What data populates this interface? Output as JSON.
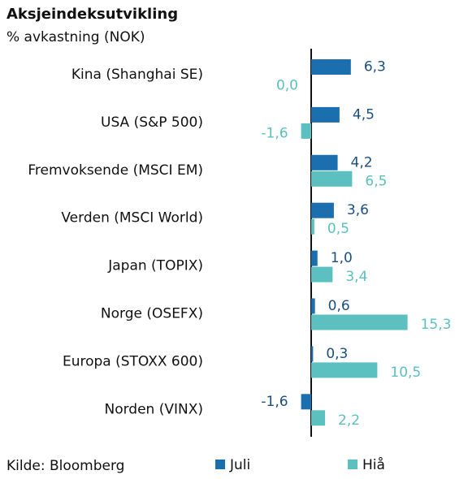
{
  "chart_data": {
    "type": "bar",
    "orientation": "horizontal",
    "title": "Aksjeindeksutvikling",
    "subtitle": "% avkastning (NOK)",
    "source": "Kilde: Bloomberg",
    "categories": [
      "Kina (Shanghai SE)",
      "USA (S&P 500)",
      "Fremvoksende (MSCI EM)",
      "Verden (MSCI World)",
      "Japan (TOPIX)",
      "Norge (OSEFX)",
      "Europa (STOXX 600)",
      "Norden (VINX)"
    ],
    "series": [
      {
        "name": "Juli",
        "color": "#1b6fae",
        "values": [
          6.3,
          4.5,
          4.2,
          3.6,
          1.0,
          0.6,
          0.3,
          -1.6
        ],
        "value_labels": [
          "6,3",
          "4,5",
          "4,2",
          "3,6",
          "1,0",
          "0,6",
          "0,3",
          "-1,6"
        ]
      },
      {
        "name": "Hiå",
        "color": "#5cc0c0",
        "values": [
          0.0,
          -1.6,
          6.5,
          0.5,
          3.4,
          15.3,
          10.5,
          2.2
        ],
        "value_labels": [
          "0,0",
          "-1,6",
          "6,5",
          "0,5",
          "3,4",
          "15,3",
          "10,5",
          "2,2"
        ]
      }
    ]
  }
}
